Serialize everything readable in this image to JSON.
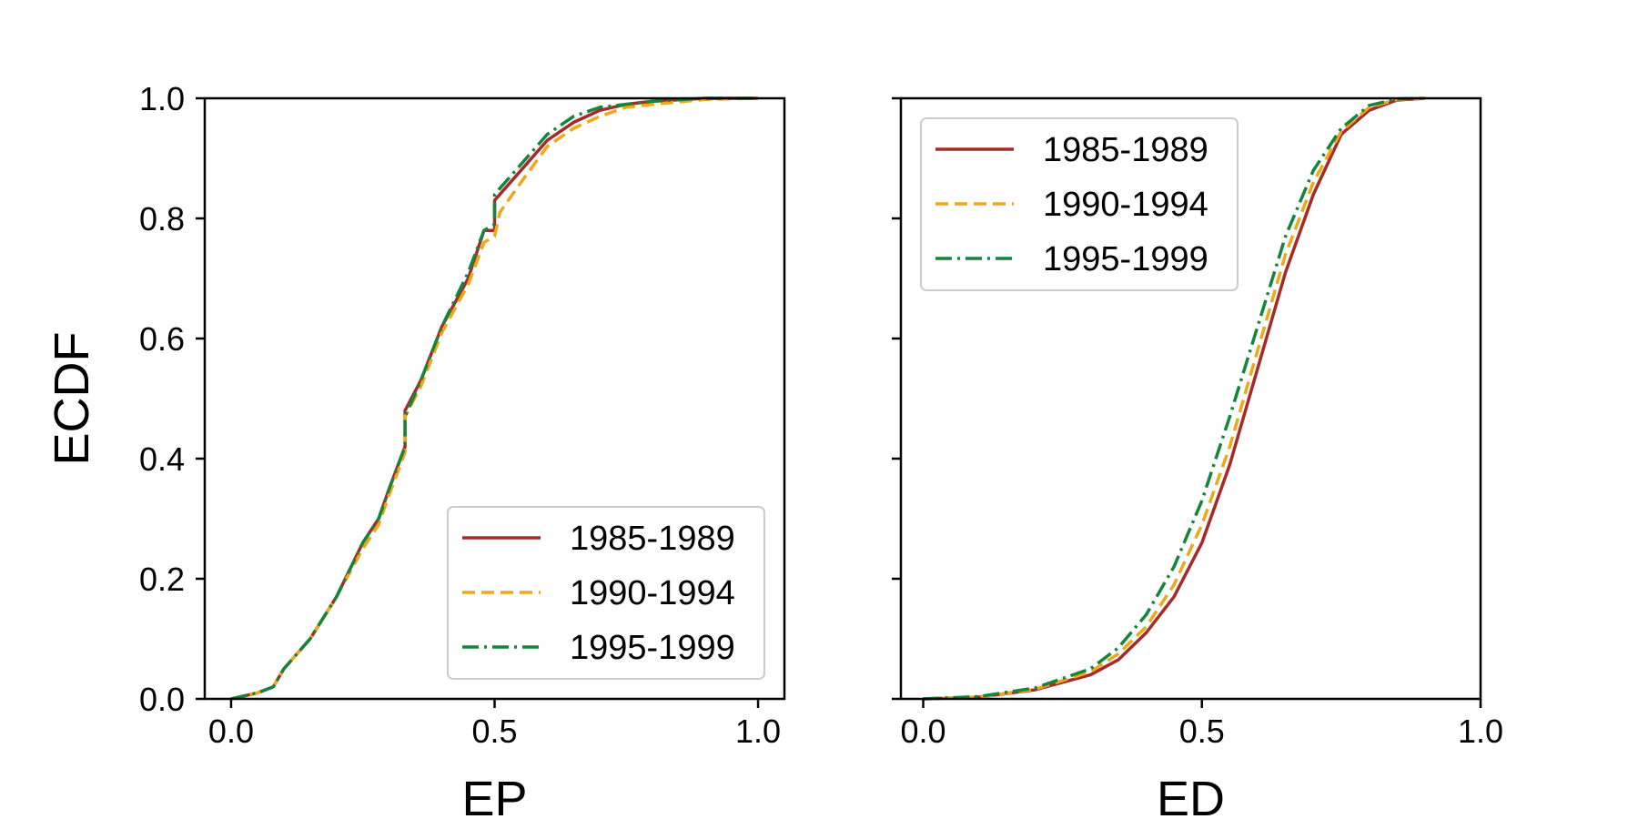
{
  "chart_data": [
    {
      "type": "line",
      "xlabel": "EP",
      "ylabel": "ECDF",
      "xlim": [
        -0.05,
        1.05
      ],
      "ylim": [
        0,
        1
      ],
      "xticks": [
        "0.0",
        "0.5",
        "1.0"
      ],
      "yticks": [
        "0.0",
        "0.2",
        "0.4",
        "0.6",
        "0.8",
        "1.0"
      ],
      "legend_position": "lower-right",
      "series": [
        {
          "name": "1985-1989",
          "color": "#a52a2a",
          "dash": "solid",
          "x": [
            0.0,
            0.05,
            0.08,
            0.1,
            0.15,
            0.2,
            0.25,
            0.28,
            0.3,
            0.33,
            0.33,
            0.36,
            0.4,
            0.45,
            0.48,
            0.5,
            0.5,
            0.55,
            0.6,
            0.65,
            0.7,
            0.75,
            0.8,
            0.9,
            1.0
          ],
          "y": [
            0.0,
            0.01,
            0.02,
            0.05,
            0.1,
            0.17,
            0.26,
            0.3,
            0.35,
            0.42,
            0.48,
            0.53,
            0.62,
            0.7,
            0.78,
            0.78,
            0.83,
            0.88,
            0.93,
            0.96,
            0.98,
            0.99,
            0.995,
            1.0,
            1.0
          ]
        },
        {
          "name": "1990-1994",
          "color": "#f0a818",
          "dash": "dashed",
          "x": [
            0.0,
            0.05,
            0.08,
            0.1,
            0.15,
            0.2,
            0.25,
            0.28,
            0.3,
            0.33,
            0.33,
            0.36,
            0.4,
            0.45,
            0.48,
            0.5,
            0.51,
            0.55,
            0.6,
            0.65,
            0.7,
            0.75,
            0.8,
            0.9,
            1.0
          ],
          "y": [
            0.0,
            0.01,
            0.02,
            0.05,
            0.1,
            0.17,
            0.25,
            0.29,
            0.34,
            0.41,
            0.47,
            0.52,
            0.61,
            0.69,
            0.76,
            0.77,
            0.81,
            0.86,
            0.92,
            0.95,
            0.97,
            0.985,
            0.99,
            0.998,
            1.0
          ]
        },
        {
          "name": "1995-1999",
          "color": "#15843c",
          "dash": "dashdot",
          "x": [
            0.0,
            0.05,
            0.08,
            0.1,
            0.15,
            0.2,
            0.25,
            0.28,
            0.3,
            0.33,
            0.33,
            0.36,
            0.4,
            0.45,
            0.48,
            0.5,
            0.5,
            0.55,
            0.6,
            0.65,
            0.7,
            0.75,
            0.8,
            0.9,
            1.0
          ],
          "y": [
            0.0,
            0.01,
            0.02,
            0.05,
            0.1,
            0.17,
            0.26,
            0.3,
            0.35,
            0.42,
            0.47,
            0.53,
            0.62,
            0.71,
            0.78,
            0.79,
            0.84,
            0.89,
            0.94,
            0.97,
            0.985,
            0.99,
            0.995,
            1.0,
            1.0
          ]
        }
      ]
    },
    {
      "type": "line",
      "xlabel": "ED",
      "ylabel": "",
      "xlim": [
        -0.04,
        1.0
      ],
      "ylim": [
        0,
        1
      ],
      "xticks": [
        "0.0",
        "0.5",
        "1.0"
      ],
      "yticks": [],
      "legend_position": "upper-left",
      "series": [
        {
          "name": "1985-1989",
          "color": "#a52a2a",
          "dash": "solid",
          "x": [
            0.0,
            0.1,
            0.2,
            0.3,
            0.35,
            0.4,
            0.45,
            0.5,
            0.55,
            0.6,
            0.65,
            0.7,
            0.75,
            0.8,
            0.85,
            0.9
          ],
          "y": [
            0.0,
            0.003,
            0.015,
            0.04,
            0.065,
            0.11,
            0.17,
            0.26,
            0.39,
            0.55,
            0.71,
            0.84,
            0.94,
            0.98,
            0.997,
            1.0
          ]
        },
        {
          "name": "1990-1994",
          "color": "#f0a818",
          "dash": "dashed",
          "x": [
            0.0,
            0.1,
            0.2,
            0.3,
            0.35,
            0.4,
            0.45,
            0.5,
            0.55,
            0.6,
            0.65,
            0.7,
            0.75,
            0.8,
            0.85,
            0.9
          ],
          "y": [
            0.0,
            0.003,
            0.016,
            0.045,
            0.075,
            0.12,
            0.19,
            0.29,
            0.42,
            0.58,
            0.74,
            0.86,
            0.945,
            0.985,
            0.998,
            1.0
          ]
        },
        {
          "name": "1995-1999",
          "color": "#15843c",
          "dash": "dashdot",
          "x": [
            0.0,
            0.1,
            0.2,
            0.3,
            0.35,
            0.4,
            0.45,
            0.5,
            0.55,
            0.6,
            0.65,
            0.7,
            0.75,
            0.8,
            0.85,
            0.9
          ],
          "y": [
            0.0,
            0.004,
            0.018,
            0.05,
            0.085,
            0.14,
            0.22,
            0.33,
            0.47,
            0.62,
            0.77,
            0.88,
            0.95,
            0.988,
            0.999,
            1.0
          ]
        }
      ]
    }
  ]
}
